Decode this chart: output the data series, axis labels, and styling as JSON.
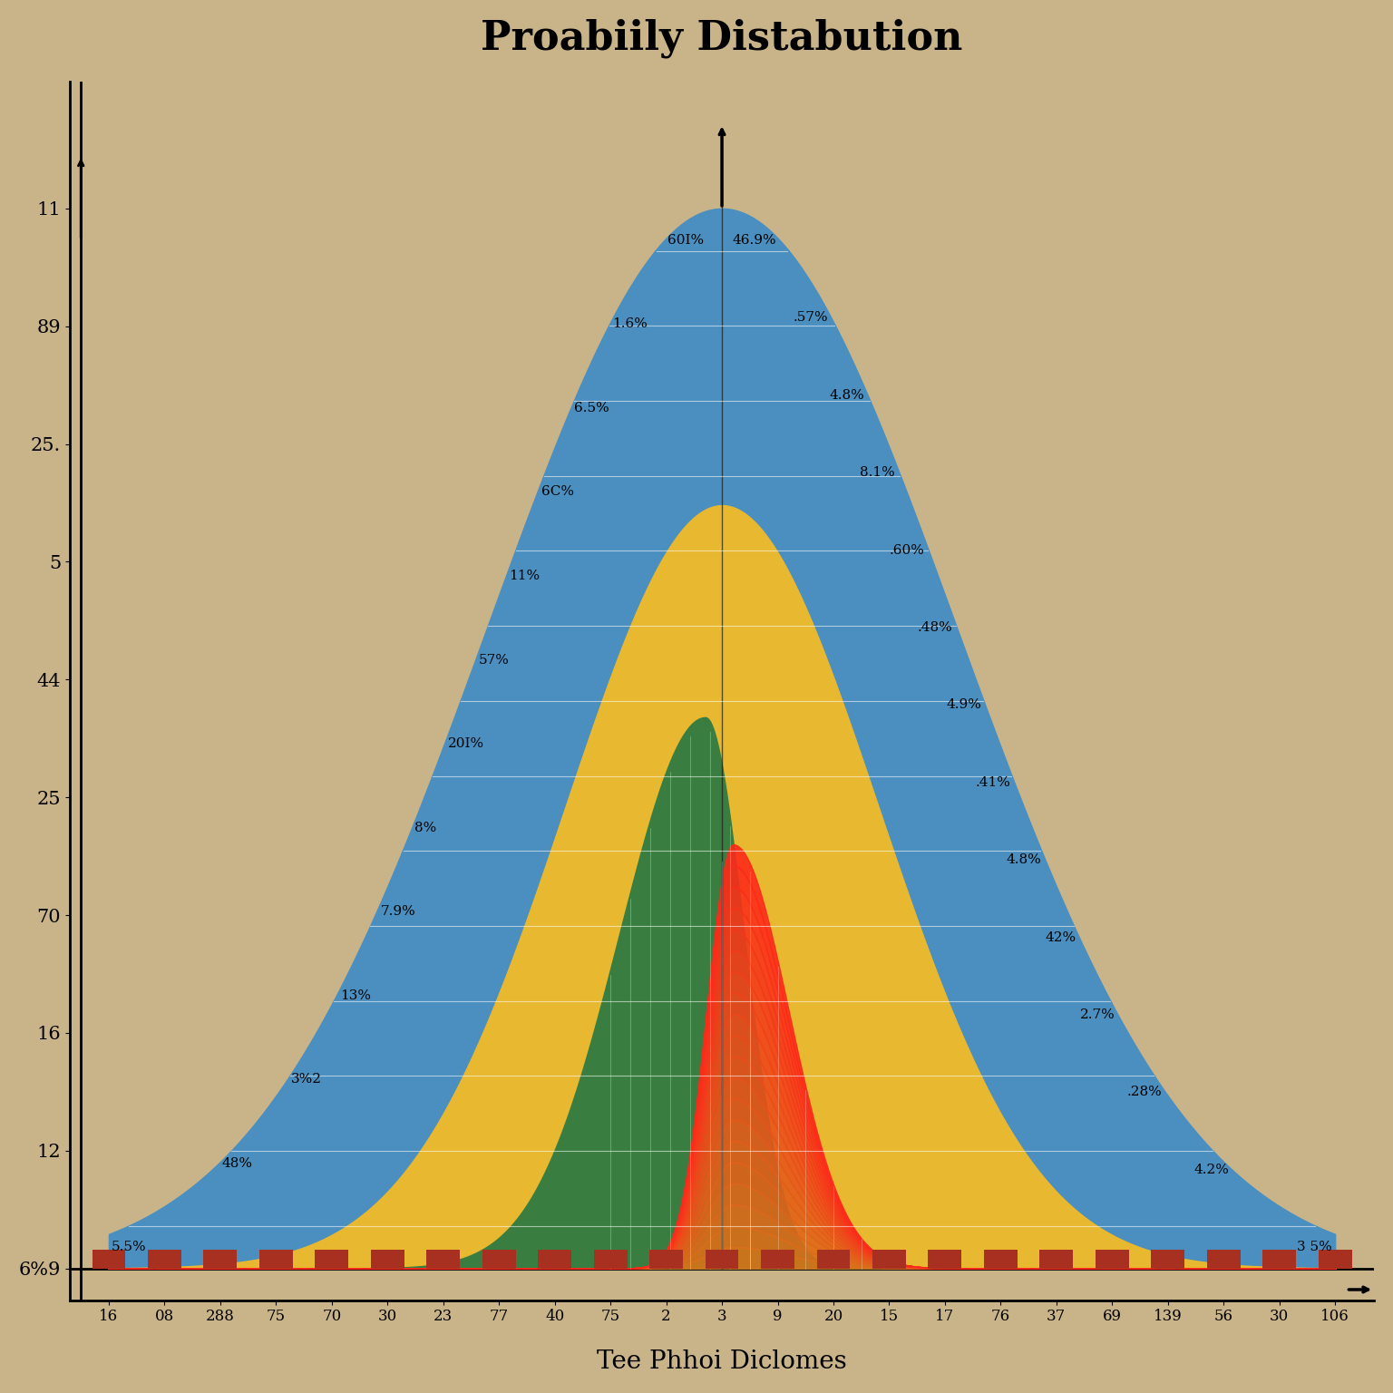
{
  "title": "Proabiily Distabution",
  "xlabel": "Tee Phhoi Diclomes",
  "background_color": "#c9b48a",
  "categories": [
    "16",
    "08",
    "288",
    "75",
    "70",
    "30",
    "23",
    "77",
    "40",
    "75",
    "2",
    "3",
    "9",
    "20",
    "15",
    "17",
    "76",
    "37",
    "69",
    "139",
    "56",
    "30",
    "106"
  ],
  "y_tick_labels": [
    "6%9",
    "12",
    "16",
    "70",
    "25",
    "44",
    "5",
    "25.",
    "89",
    "11"
  ],
  "left_annotations": [
    "60I%",
    "1.6%",
    "6.5%",
    "6C%",
    "11%",
    "57%",
    "20I%",
    "8%",
    "7.9%",
    "13%",
    "3%2",
    "48%",
    "5.5%"
  ],
  "right_annotations": [
    "46.9%",
    ".57%",
    "4.8%",
    "8.1%",
    ".60%",
    ".48%",
    "4.9%",
    ".41%",
    "4.8%",
    "42%",
    "2.7%",
    ".28%",
    "4.2%",
    "3 5%"
  ],
  "colors": {
    "blue": "#4a8fc0",
    "yellow": "#e8b830",
    "green": "#3a7d40",
    "orange": "#d9722a",
    "red_dark": "#a83020",
    "bg": "#c9b48a",
    "axis": "#1a1a1a"
  },
  "title_fontsize": 32,
  "label_fontsize": 20,
  "tick_fontsize": 15,
  "annot_fontsize": 11
}
